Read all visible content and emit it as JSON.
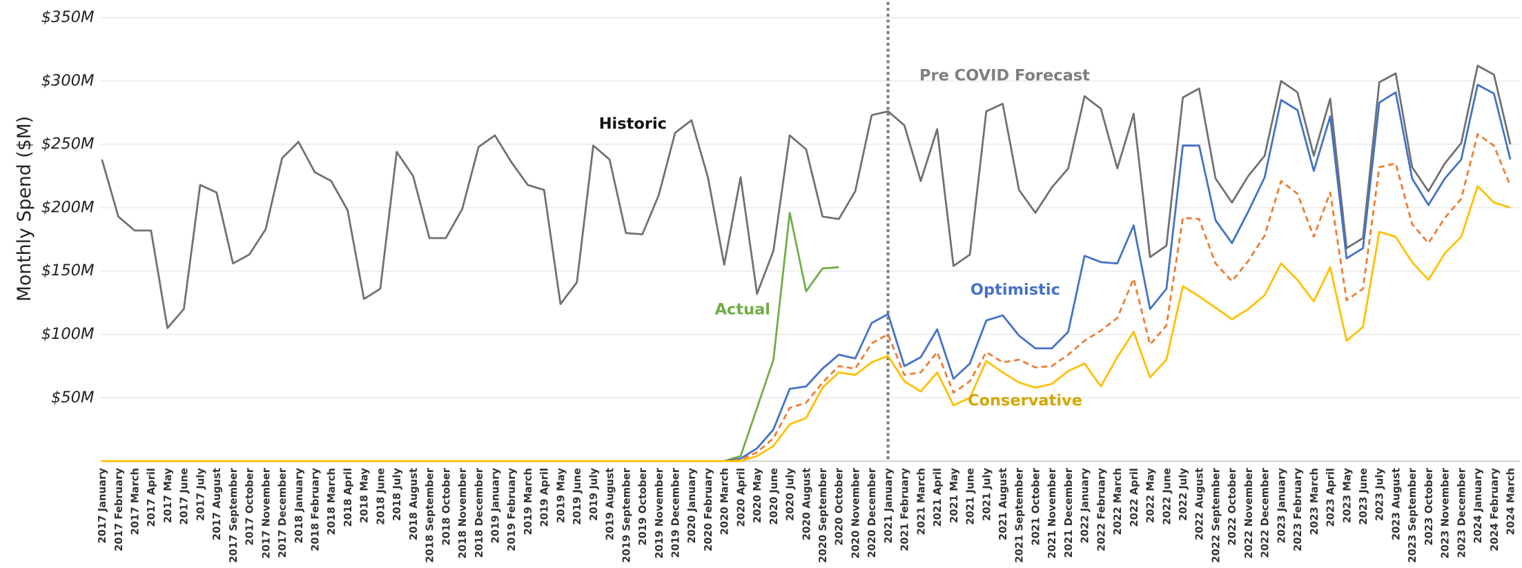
{
  "chart_data": {
    "type": "line",
    "y_label": "Monthly Spend ($M)",
    "annotations": [
      "Historic",
      "Pre COVID Forecast"
    ],
    "vline_at": "2021 January",
    "categories": [
      "2017 January",
      "2017 February",
      "2017 March",
      "2017 April",
      "2017 May",
      "2017 June",
      "2017 July",
      "2017 August",
      "2017 September",
      "2017 October",
      "2017 November",
      "2017 December",
      "2018 January",
      "2018 February",
      "2018 March",
      "2018 April",
      "2018 May",
      "2018 June",
      "2018 July",
      "2018 August",
      "2018 September",
      "2018 October",
      "2018 November",
      "2018 December",
      "2019 January",
      "2019 February",
      "2019 March",
      "2019 April",
      "2019 May",
      "2019 June",
      "2019 July",
      "2019 August",
      "2019 September",
      "2019 October",
      "2019 November",
      "2019 December",
      "2020 January",
      "2020 February",
      "2020 March",
      "2020 April",
      "2020 May",
      "2020 June",
      "2020 July",
      "2020 August",
      "2020 September",
      "2020 October",
      "2020 November",
      "2020 December",
      "2021 January",
      "2021 February",
      "2021 March",
      "2021 April",
      "2021 May",
      "2021 June",
      "2021 July",
      "2021 August",
      "2021 September",
      "2021 October",
      "2021 November",
      "2021 December",
      "2022 January",
      "2022 February",
      "2022 March",
      "2022 April",
      "2022 May",
      "2022 June",
      "2022 July",
      "2022 August",
      "2022 September",
      "2022 October",
      "2022 November",
      "2022 December",
      "2023 January",
      "2023 February",
      "2023 March",
      "2023 April",
      "2023 May",
      "2023 June",
      "2023 July",
      "2023 August",
      "2023 September",
      "2023 October",
      "2023 November",
      "2023 December",
      "2024 January",
      "2024 February",
      "2024 March"
    ],
    "series": [
      {
        "color": "#717171",
        "values": [
          238,
          193,
          182,
          182,
          105,
          120,
          218,
          212,
          156,
          163,
          183,
          239,
          252,
          228,
          221,
          198,
          128,
          136,
          244,
          225,
          176,
          176,
          199,
          248,
          257,
          236,
          218,
          214,
          124,
          141,
          249,
          238,
          180,
          179,
          210,
          259,
          269,
          224,
          155,
          224,
          132,
          166,
          257,
          246,
          193,
          191,
          213,
          273,
          276,
          265,
          221,
          262,
          154,
          163,
          276,
          282,
          214,
          196,
          216,
          231,
          288,
          278,
          231,
          274,
          161,
          170,
          287,
          294,
          223,
          204,
          225,
          241,
          300,
          291,
          241,
          286,
          168,
          176,
          299,
          306,
          232,
          213,
          235,
          251,
          312,
          305,
          250
        ]
      },
      {
        "name": "Actual",
        "color": "#70ad47",
        "values": [
          null,
          null,
          null,
          null,
          null,
          null,
          null,
          null,
          null,
          null,
          null,
          null,
          null,
          null,
          null,
          null,
          null,
          null,
          null,
          null,
          null,
          null,
          null,
          null,
          null,
          null,
          null,
          null,
          null,
          null,
          null,
          null,
          null,
          null,
          null,
          null,
          null,
          null,
          0,
          4,
          42,
          80,
          196,
          134,
          152,
          153,
          null,
          null,
          null,
          null,
          null,
          null,
          null,
          null,
          null,
          null,
          null,
          null,
          null,
          null,
          null,
          null,
          null,
          null,
          null,
          null,
          null,
          null,
          null,
          null,
          null,
          null,
          null,
          null,
          null,
          null,
          null,
          null,
          null,
          null,
          null,
          null,
          null,
          null,
          null,
          null,
          null
        ]
      },
      {
        "name": "Optimistic",
        "color": "#4472c4",
        "values": [
          null,
          null,
          null,
          null,
          null,
          null,
          null,
          null,
          null,
          null,
          null,
          null,
          null,
          null,
          null,
          null,
          null,
          null,
          null,
          null,
          null,
          null,
          null,
          null,
          null,
          null,
          null,
          null,
          null,
          null,
          null,
          null,
          null,
          null,
          null,
          null,
          null,
          null,
          0,
          2,
          10,
          25,
          57,
          59,
          73,
          84,
          81,
          109,
          116,
          75,
          82,
          104,
          65,
          77,
          111,
          115,
          99,
          89,
          89,
          102,
          162,
          157,
          156,
          186,
          120,
          136,
          249,
          249,
          190,
          172,
          197,
          224,
          285,
          277,
          229,
          272,
          160,
          168,
          283,
          291,
          223,
          202,
          223,
          238,
          297,
          290,
          238
        ]
      },
      {
        "color": "#ed7d31",
        "dashed": true,
        "values": [
          null,
          null,
          null,
          null,
          null,
          null,
          null,
          null,
          null,
          null,
          null,
          null,
          null,
          null,
          null,
          null,
          null,
          null,
          null,
          null,
          null,
          null,
          null,
          null,
          null,
          null,
          null,
          null,
          null,
          null,
          null,
          null,
          null,
          null,
          null,
          null,
          null,
          null,
          0,
          1,
          7,
          18,
          42,
          46,
          62,
          75,
          73,
          93,
          100,
          68,
          70,
          86,
          54,
          63,
          86,
          78,
          80,
          74,
          75,
          84,
          95,
          103,
          113,
          144,
          92,
          107,
          192,
          191,
          156,
          142,
          158,
          178,
          221,
          211,
          177,
          212,
          127,
          136,
          232,
          235,
          187,
          172,
          192,
          207,
          258,
          249,
          217
        ]
      },
      {
        "name": "Conservative",
        "color": "#ffc000",
        "label_color": "#d4a500",
        "values": [
          0,
          0,
          0,
          0,
          0,
          0,
          0,
          0,
          0,
          0,
          0,
          0,
          0,
          0,
          0,
          0,
          0,
          0,
          0,
          0,
          0,
          0,
          0,
          0,
          0,
          0,
          0,
          0,
          0,
          0,
          0,
          0,
          0,
          0,
          0,
          0,
          0,
          0,
          0,
          0,
          4,
          12,
          29,
          34,
          58,
          70,
          68,
          78,
          83,
          63,
          55,
          70,
          44,
          50,
          79,
          70,
          62,
          58,
          61,
          71,
          77,
          59,
          82,
          102,
          66,
          80,
          138,
          130,
          121,
          112,
          120,
          131,
          156,
          143,
          126,
          153,
          95,
          106,
          181,
          177,
          157,
          143,
          164,
          177,
          217,
          204,
          200
        ]
      }
    ],
    "ylim": [
      0,
      350
    ],
    "yticks": [
      {
        "value": 50,
        "label": "$50M"
      },
      {
        "value": 100,
        "label": "$100M"
      },
      {
        "value": 150,
        "label": "$150M"
      },
      {
        "value": 200,
        "label": "$200M"
      },
      {
        "value": 250,
        "label": "$250M"
      },
      {
        "value": 300,
        "label": "$300M"
      },
      {
        "value": 350,
        "label": "$350M"
      }
    ],
    "grid": true
  }
}
